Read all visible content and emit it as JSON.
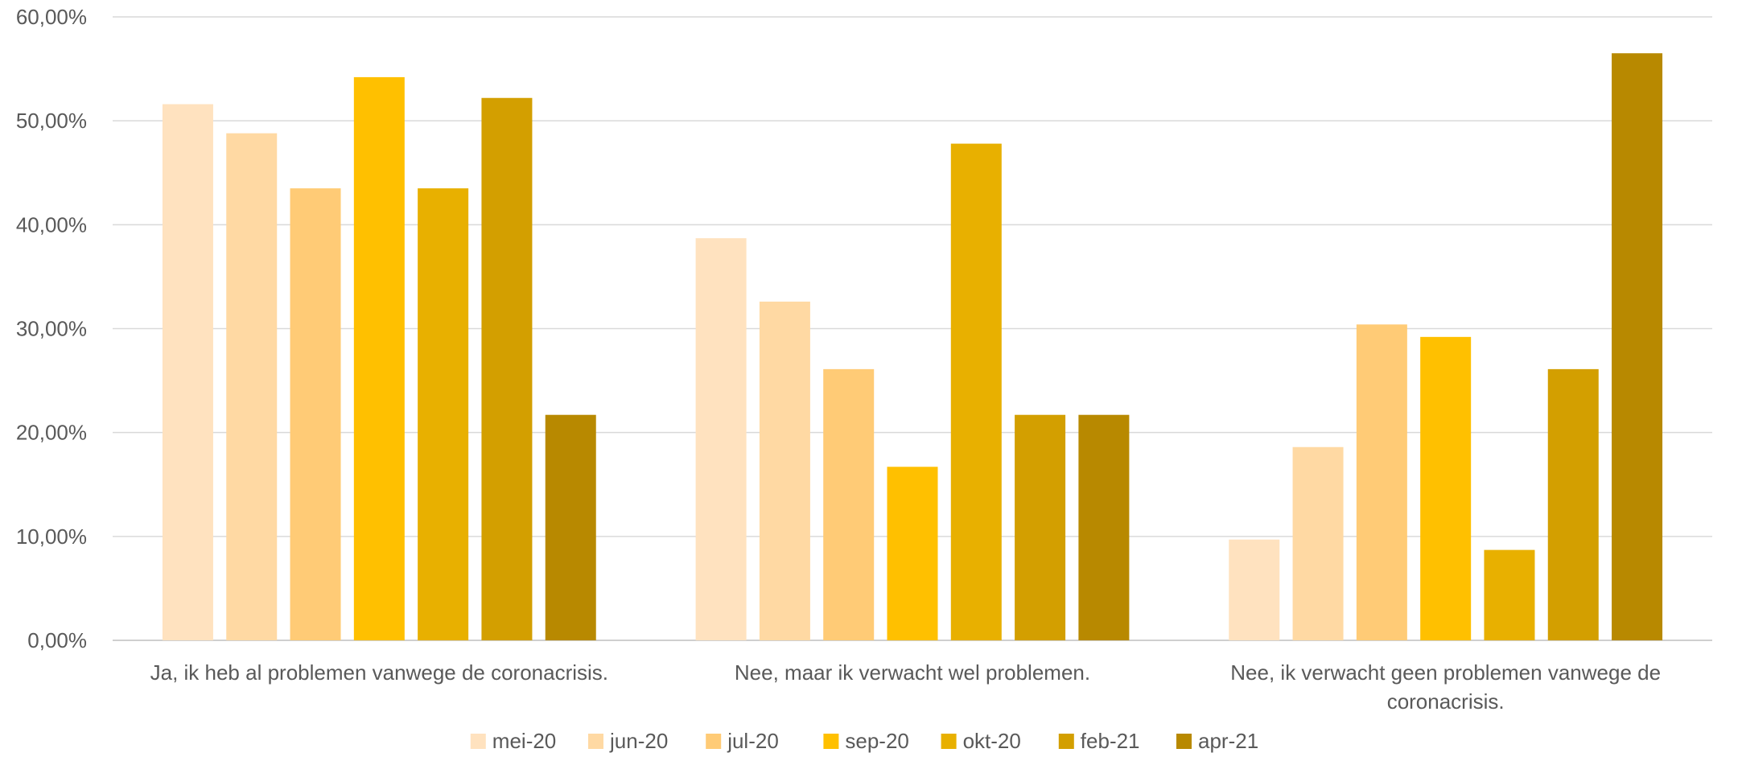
{
  "chart_data": {
    "type": "bar",
    "categories": [
      [
        "Ja, ik heb al problemen vanwege de coronacrisis."
      ],
      [
        "Nee, maar ik verwacht wel problemen."
      ],
      [
        "Nee, ik verwacht geen problemen vanwege de",
        "coronacrisis."
      ]
    ],
    "series": [
      {
        "name": "mei-20",
        "color": "#FFE2BF",
        "values": [
          51.6,
          38.7,
          9.7
        ]
      },
      {
        "name": "jun-20",
        "color": "#FFD9A3",
        "values": [
          48.8,
          32.6,
          18.6
        ]
      },
      {
        "name": "jul-20",
        "color": "#FFCB76",
        "values": [
          43.5,
          26.1,
          30.4
        ]
      },
      {
        "name": "sep-20",
        "color": "#FFC000",
        "values": [
          54.2,
          16.7,
          29.2
        ]
      },
      {
        "name": "okt-20",
        "color": "#E8B000",
        "values": [
          43.5,
          47.8,
          8.7
        ]
      },
      {
        "name": "feb-21",
        "color": "#D39F00",
        "values": [
          52.2,
          21.7,
          26.1
        ]
      },
      {
        "name": "apr-21",
        "color": "#B88900",
        "values": [
          21.7,
          21.7,
          56.5
        ]
      }
    ],
    "yticks": [
      "0,00%",
      "10,00%",
      "20,00%",
      "30,00%",
      "40,00%",
      "50,00%",
      "60,00%"
    ],
    "ylim": [
      0,
      60
    ],
    "title": "",
    "xlabel": "",
    "ylabel": "",
    "grid": true,
    "legend_position": "bottom"
  }
}
